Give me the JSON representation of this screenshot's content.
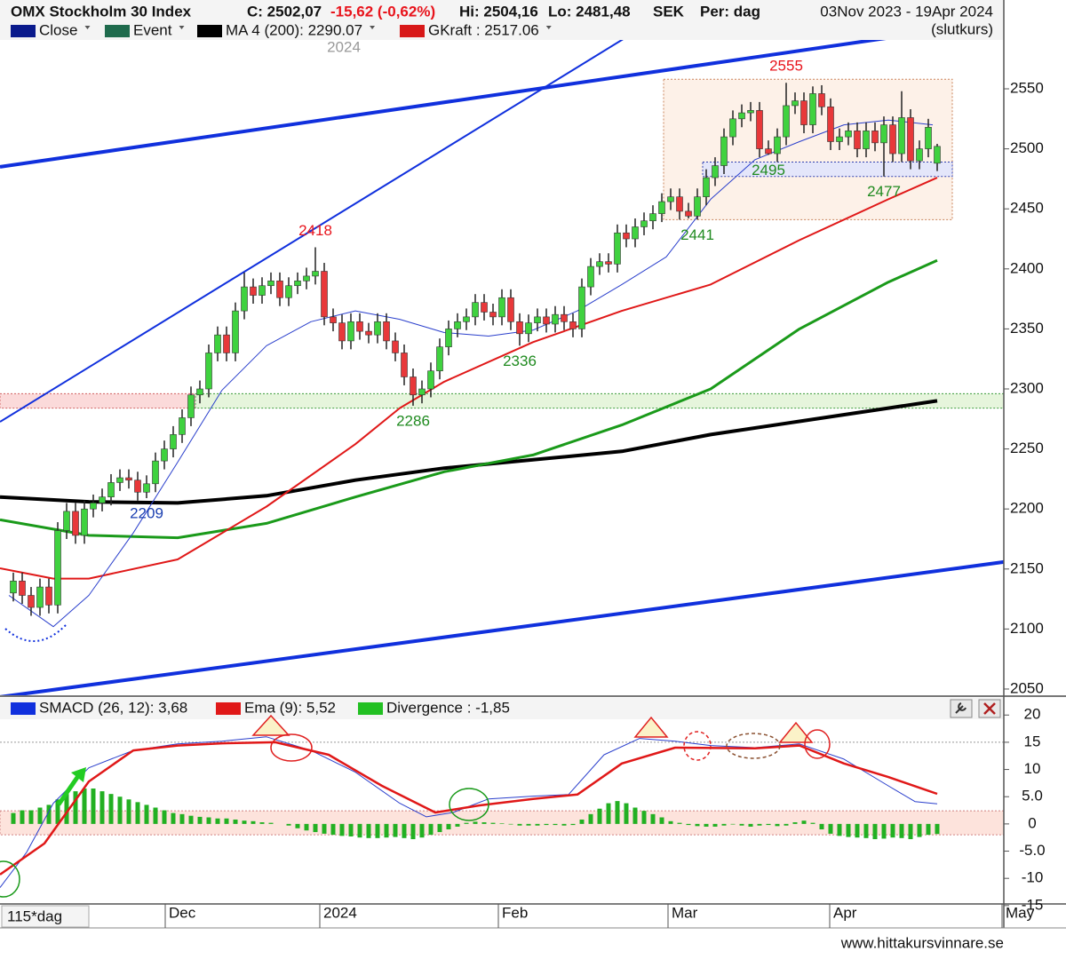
{
  "chart_data": [
    {
      "type": "candlestick",
      "title": "OMX Stockholm 30 Index",
      "info": [
        {
          "text": "C: 2502,07",
          "color": "#111111"
        },
        {
          "text": "-15,62 (-0,62%)",
          "color": "#e8141c"
        },
        {
          "text": "Hi: 2504,16",
          "color": "#111111"
        },
        {
          "text": "Lo: 2481,48",
          "color": "#111111"
        },
        {
          "text": "SEK",
          "color": "#111111"
        },
        {
          "text": "Per: dag",
          "color": "#111111"
        }
      ],
      "date_range": "03Nov 2023 - 19Apr 2024",
      "price_type": "(slutkurs)",
      "year_label": "2024",
      "legend": [
        {
          "name": "Close",
          "color": "#0a1a8c"
        },
        {
          "name": "Event",
          "color": "#1f6b4d"
        },
        {
          "name": "MA 4 (200): 2290.07",
          "color": "#000000"
        },
        {
          "name": "GKraft : 2517.06",
          "color": "#d81818"
        }
      ],
      "up_color": "#3fd23f",
      "down_color": "#e8383a",
      "open": [
        2130,
        2140,
        2128,
        2118,
        2135,
        2120,
        2182,
        2198,
        2178,
        2200,
        2205,
        2210,
        2222,
        2226,
        2224,
        2214,
        2221,
        2240,
        2250,
        2262,
        2276,
        2295,
        2300,
        2330,
        2345,
        2330,
        2365,
        2385,
        2378,
        2386,
        2390,
        2376,
        2386,
        2390,
        2394,
        2398,
        2360,
        2355,
        2340,
        2356,
        2348,
        2345,
        2356,
        2340,
        2330,
        2310,
        2295,
        2300,
        2315,
        2335,
        2350,
        2356,
        2360,
        2372,
        2364,
        2360,
        2376,
        2356,
        2346,
        2355,
        2360,
        2354,
        2362,
        2356,
        2350,
        2385,
        2402,
        2406,
        2404,
        2430,
        2425,
        2435,
        2440,
        2446,
        2456,
        2460,
        2448,
        2444,
        2460,
        2476,
        2486,
        2510,
        2525,
        2530,
        2532,
        2500,
        2496,
        2510,
        2536,
        2540,
        2520,
        2546,
        2535,
        2506,
        2510,
        2515,
        2500,
        2515,
        2505,
        2520,
        2496,
        2526,
        2490,
        2500,
        2488
      ],
      "high": [
        2147,
        2147,
        2135,
        2142,
        2142,
        2189,
        2205,
        2205,
        2207,
        2212,
        2217,
        2229,
        2233,
        2233,
        2231,
        2228,
        2247,
        2257,
        2269,
        2283,
        2302,
        2307,
        2337,
        2352,
        2352,
        2372,
        2397,
        2392,
        2393,
        2397,
        2397,
        2393,
        2397,
        2401,
        2418,
        2405,
        2367,
        2362,
        2363,
        2363,
        2355,
        2363,
        2363,
        2347,
        2337,
        2317,
        2307,
        2322,
        2342,
        2357,
        2363,
        2367,
        2379,
        2379,
        2371,
        2383,
        2383,
        2363,
        2362,
        2367,
        2367,
        2369,
        2369,
        2363,
        2392,
        2409,
        2413,
        2413,
        2437,
        2437,
        2442,
        2447,
        2453,
        2463,
        2467,
        2467,
        2455,
        2467,
        2483,
        2493,
        2517,
        2532,
        2537,
        2539,
        2539,
        2507,
        2517,
        2555,
        2547,
        2547,
        2552,
        2553,
        2542,
        2517,
        2522,
        2522,
        2522,
        2522,
        2527,
        2527,
        2548,
        2533,
        2507,
        2525,
        2504.16
      ],
      "low": [
        2123,
        2121,
        2111,
        2111,
        2113,
        2113,
        2175,
        2171,
        2171,
        2193,
        2198,
        2203,
        2215,
        2217,
        2207,
        2209,
        2214,
        2233,
        2243,
        2255,
        2269,
        2288,
        2293,
        2323,
        2323,
        2323,
        2358,
        2371,
        2371,
        2379,
        2369,
        2369,
        2379,
        2383,
        2387,
        2353,
        2348,
        2333,
        2333,
        2341,
        2338,
        2338,
        2333,
        2323,
        2303,
        2286,
        2288,
        2293,
        2308,
        2328,
        2343,
        2349,
        2353,
        2357,
        2353,
        2353,
        2349,
        2336,
        2339,
        2348,
        2347,
        2347,
        2349,
        2343,
        2343,
        2378,
        2395,
        2397,
        2397,
        2418,
        2418,
        2428,
        2433,
        2439,
        2449,
        2441,
        2442,
        2441,
        2453,
        2469,
        2479,
        2503,
        2518,
        2523,
        2493,
        2495,
        2489,
        2503,
        2529,
        2513,
        2513,
        2528,
        2499,
        2499,
        2503,
        2493,
        2493,
        2498,
        2477,
        2489,
        2489,
        2483,
        2483,
        2493,
        2481.48
      ],
      "close": [
        2140,
        2128,
        2118,
        2135,
        2120,
        2182,
        2198,
        2178,
        2200,
        2205,
        2210,
        2222,
        2226,
        2224,
        2214,
        2221,
        2240,
        2250,
        2262,
        2276,
        2295,
        2300,
        2330,
        2345,
        2330,
        2365,
        2385,
        2378,
        2386,
        2390,
        2376,
        2386,
        2390,
        2394,
        2398,
        2360,
        2355,
        2340,
        2356,
        2348,
        2345,
        2356,
        2340,
        2330,
        2310,
        2295,
        2300,
        2315,
        2335,
        2350,
        2356,
        2360,
        2372,
        2364,
        2360,
        2376,
        2356,
        2346,
        2355,
        2360,
        2354,
        2362,
        2356,
        2350,
        2385,
        2402,
        2406,
        2404,
        2430,
        2425,
        2435,
        2440,
        2446,
        2456,
        2460,
        2448,
        2444,
        2460,
        2476,
        2486,
        2510,
        2525,
        2530,
        2532,
        2500,
        2496,
        2510,
        2536,
        2540,
        2520,
        2546,
        2535,
        2506,
        2510,
        2515,
        2500,
        2515,
        2505,
        2520,
        2496,
        2526,
        2490,
        2500,
        2518,
        2502.07
      ],
      "lines": [
        {
          "color": "#000000",
          "width": 4,
          "x": [
            -1.5,
            8.5,
            18.5,
            28.5,
            38.5,
            48.5,
            58.5,
            68.5,
            78.5,
            88.5,
            98.5,
            104
          ],
          "values": [
            2210,
            2206,
            2205,
            2211,
            2224,
            2234,
            2241,
            2248,
            2262,
            2273,
            2284,
            2290.07
          ]
        },
        {
          "color": "#1a9a1a",
          "width": 3,
          "x": [
            -1.5,
            8.5,
            18.5,
            28.5,
            38.5,
            48.5,
            58.5,
            68.5,
            78.5,
            88.5,
            98.5,
            104
          ],
          "values": [
            2191,
            2178,
            2176,
            2188,
            2210,
            2231,
            2245,
            2270,
            2300,
            2350,
            2389,
            2407
          ]
        },
        {
          "color": "#e01818",
          "width": 2,
          "x": [
            -1.5,
            4.5,
            8.5,
            18.5,
            28.5,
            38.5,
            43.5,
            48.5,
            58.5,
            68.5,
            78.5,
            88.5,
            98.5,
            104
          ],
          "values": [
            2150.6,
            2142,
            2142,
            2158,
            2202,
            2254,
            2284,
            2306,
            2339,
            2365,
            2387,
            2424,
            2458,
            2476
          ]
        },
        {
          "color": "#2a3fcc",
          "width": 1,
          "x": [
            -0.5,
            4.5,
            8.5,
            13.5,
            18.5,
            23.5,
            28.5,
            33.5,
            38.5,
            43.5,
            48.5,
            53.5,
            58.5,
            63.5,
            68.5,
            73.5,
            78.5,
            83.5,
            88.5,
            93.5,
            98.5,
            103.5
          ],
          "values": [
            2128,
            2102,
            2128,
            2180,
            2239,
            2299,
            2336,
            2356,
            2365,
            2358,
            2347,
            2344,
            2349,
            2365,
            2387,
            2410,
            2458,
            2491,
            2506,
            2520,
            2524,
            2520
          ]
        }
      ],
      "trendlines": [
        {
          "color": "#1030dd",
          "width": 4,
          "x": [
            -1.5,
            99
          ],
          "values": [
            2485,
            2593
          ]
        },
        {
          "color": "#1030dd",
          "width": 4,
          "x": [
            -1.5,
            111.5
          ],
          "values": [
            2043.4,
            2155.8
          ]
        },
        {
          "color": "#1030dd",
          "width": 2,
          "x": [
            -1.5,
            69
          ],
          "values": [
            2272.6,
            2593
          ]
        }
      ],
      "zones": [
        {
          "x": [
            -1.5,
            20.5
          ],
          "y": [
            2284,
            2296
          ],
          "fill": "#fbdada",
          "stroke": "#d06060"
        },
        {
          "x": [
            20.5,
            111.5
          ],
          "y": [
            2284,
            2296
          ],
          "fill": "#e6f5dc",
          "stroke": "#3a9a3a"
        },
        {
          "x": [
            73.2,
            105.7
          ],
          "y": [
            2441,
            2558
          ],
          "fill": "#fdf1e8",
          "stroke": "#c9835a"
        },
        {
          "x": [
            77.6,
            105.7
          ],
          "y": [
            2477,
            2489
          ],
          "fill": "#e4e6fa",
          "stroke": "#3040b0"
        }
      ],
      "annotations": [
        {
          "label": "2555",
          "x": 87,
          "y": 2555,
          "color": "#e8141c",
          "side": "above"
        },
        {
          "label": "2418",
          "x": 34,
          "y": 2418,
          "color": "#e8141c",
          "side": "above"
        },
        {
          "label": "2495",
          "x": 85,
          "y": 2495,
          "color": "#1f8a1f",
          "side": "below"
        },
        {
          "label": "2477",
          "x": 98,
          "y": 2477,
          "color": "#1f8a1f",
          "side": "below"
        },
        {
          "label": "2441",
          "x": 77,
          "y": 2441,
          "color": "#1f8a1f",
          "side": "below"
        },
        {
          "label": "2336",
          "x": 57,
          "y": 2336,
          "color": "#1f8a1f",
          "side": "below"
        },
        {
          "label": "2286",
          "x": 45,
          "y": 2286,
          "color": "#1f8a1f",
          "side": "below"
        },
        {
          "label": "2209",
          "x": 15,
          "y": 2209,
          "color": "#1a3fb0",
          "side": "below"
        }
      ],
      "xlim": [
        -1.5,
        111.5
      ],
      "ylim": [
        2044.8,
        2590.7
      ],
      "yticks": [
        2050,
        2100,
        2150,
        2200,
        2250,
        2300,
        2350,
        2400,
        2450,
        2500,
        2550
      ]
    },
    {
      "type": "macd",
      "legend": [
        {
          "name": "SMACD (26, 12): 3,68",
          "color": "#1030dd"
        },
        {
          "name": "Ema (9): 5,52",
          "color": "#e01818"
        },
        {
          "name": "Divergence : -1,85",
          "color": "#22c022"
        }
      ],
      "lines": [
        {
          "color": "#2a3fcc",
          "width": 1,
          "x": [
            -1.5,
            1.5,
            4.5,
            8.5,
            13.5,
            18.5,
            23.5,
            28.5,
            33.5,
            38.5,
            43.5,
            46.5,
            49.5,
            53.5,
            58.5,
            62.5,
            66.5,
            70.5,
            74.5,
            78.5,
            83.5,
            88.5,
            93.5,
            98.5,
            101.5,
            104
          ],
          "values": [
            -11.7,
            -5.2,
            3.8,
            10.3,
            13.5,
            14.7,
            15.2,
            16.0,
            13.5,
            9.5,
            3.8,
            1.3,
            2.1,
            4.6,
            5.1,
            5.4,
            12.7,
            15.7,
            15.2,
            14.4,
            14.0,
            14.7,
            11.9,
            7.0,
            4.1,
            3.68
          ]
        },
        {
          "color": "#e01818",
          "width": 2.5,
          "x": [
            -1.5,
            3.5,
            8.5,
            13.5,
            18.5,
            23.5,
            29.5,
            35.5,
            41.5,
            47.5,
            52.5,
            58.5,
            63.5,
            68.5,
            74.5,
            83.5,
            88.5,
            93.5,
            98.5,
            104
          ],
          "values": [
            -9.3,
            -3.6,
            7.8,
            13.5,
            14.4,
            14.8,
            15.0,
            12.7,
            7.0,
            2.1,
            3.4,
            4.6,
            5.4,
            11.1,
            14.0,
            13.9,
            14.4,
            11.1,
            8.6,
            5.52
          ]
        }
      ],
      "bar_color": "#22b022",
      "values": [
        2,
        2.5,
        2.5,
        3,
        3.5,
        4.5,
        5.5,
        6,
        6.5,
        6.5,
        6,
        5.5,
        5,
        4.5,
        4,
        3.5,
        3,
        2.5,
        2,
        1.8,
        1.5,
        1.3,
        1.2,
        1,
        1,
        0.8,
        0.6,
        0.5,
        0.3,
        0.2,
        0,
        -0.3,
        -0.8,
        -1.2,
        -1.5,
        -1.8,
        -2,
        -2.2,
        -2.3,
        -2.5,
        -2.6,
        -2.6,
        -2.5,
        -2.4,
        -2.6,
        -2.8,
        -2.5,
        -2,
        -1.5,
        -1,
        -0.5,
        0.2,
        0.4,
        0.3,
        0.2,
        0.1,
        -0.1,
        -0.3,
        -0.3,
        -0.3,
        -0.2,
        -0.2,
        -0.3,
        -0.2,
        0.8,
        1.8,
        2.8,
        3.8,
        4.2,
        3.8,
        3.0,
        2.4,
        1.8,
        1.2,
        0.5,
        0.2,
        -0.2,
        -0.4,
        -0.5,
        -0.5,
        -0.3,
        -0.1,
        -0.3,
        -0.5,
        -0.3,
        -0.2,
        -0.4,
        -0.3,
        0.3,
        0.6,
        0.2,
        -1,
        -1.8,
        -2.2,
        -2.4,
        -2.5,
        -2.6,
        -2.8,
        -2.7,
        -2.5,
        -2.6,
        -2.8,
        -2.4,
        -2,
        -1.85
      ],
      "band": [
        -2,
        2.4
      ],
      "ref_lines": [
        15
      ],
      "xlim": [
        -1.5,
        111.5
      ],
      "ylim": [
        -14.7,
        18.9
      ],
      "yticks": [
        20,
        15,
        10,
        {
          "value": 5,
          "label": "5.0"
        },
        0,
        {
          "value": -5,
          "label": "-5.0"
        },
        -10,
        -15
      ],
      "period_label": "115*dag",
      "xticks": [
        {
          "value": 17.1,
          "label": "Dec"
        },
        {
          "value": 34.5,
          "label": "2024"
        },
        {
          "value": 54.6,
          "label": "Feb"
        },
        {
          "value": 73.7,
          "label": "Mar"
        },
        {
          "value": 91.9,
          "label": "Apr"
        },
        {
          "value": 111.3,
          "label": "May"
        }
      ],
      "source": "www.hittakursvinnare.se"
    }
  ]
}
